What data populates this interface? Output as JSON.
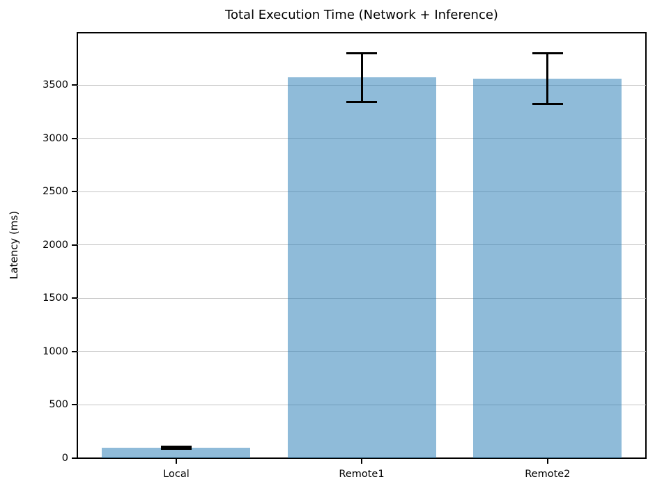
{
  "figure": {
    "background": "#ffffff"
  },
  "chart_data": {
    "type": "bar",
    "title": "Total Execution Time (Network + Inference)",
    "xlabel": "",
    "ylabel": "Latency (ms)",
    "categories": [
      "Local",
      "Remote1",
      "Remote2"
    ],
    "series": [
      {
        "name": "Total execution time",
        "values": [
          100,
          3570,
          3560
        ],
        "errors": [
          10,
          230,
          240
        ]
      }
    ],
    "yticks": [
      0,
      500,
      1000,
      1500,
      2000,
      2500,
      3000,
      3500
    ],
    "ylim": [
      0,
      3990
    ],
    "grid": true,
    "legend_position": "none",
    "colors": {
      "bar_fill": "rgba(31,119,180,0.5)",
      "bar_fill_flat": "#8fbbda",
      "error_bar": "#000000",
      "grid": "#c4c4c4",
      "spine": "#000000",
      "text": "#000000"
    }
  }
}
